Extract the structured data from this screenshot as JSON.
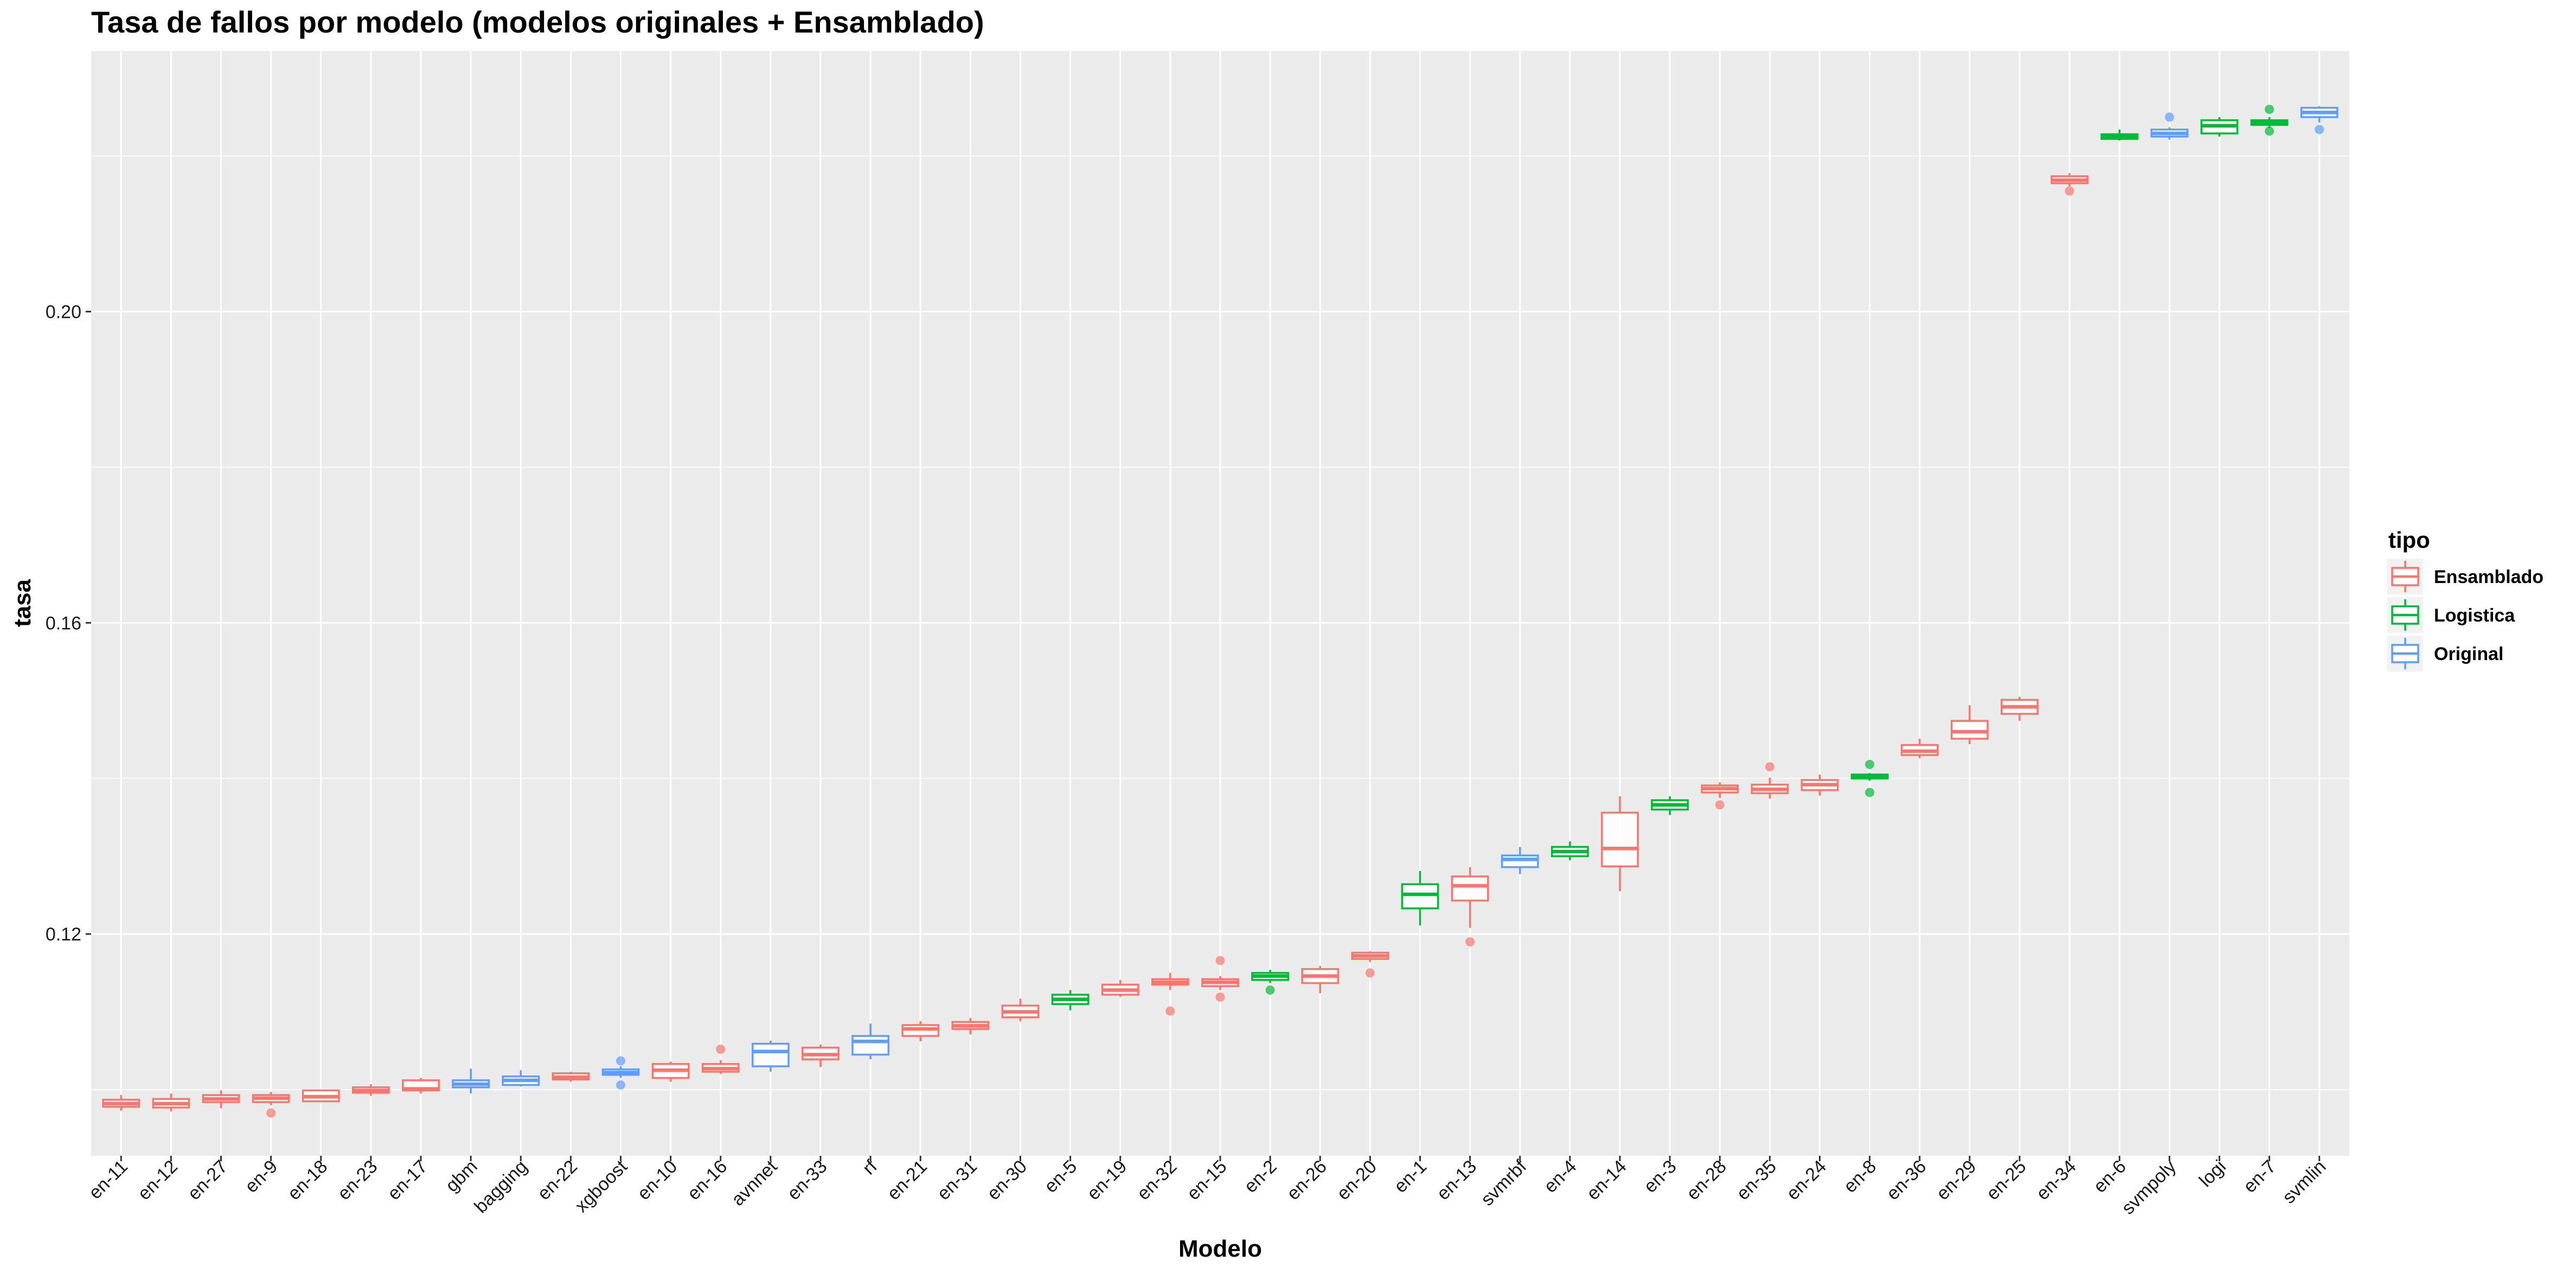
{
  "chart_data": {
    "type": "boxplot",
    "title": "Tasa de fallos por modelo (modelos originales + Ensamblado)",
    "xlabel": "Modelo",
    "ylabel": "tasa",
    "ylim": [
      0.0915,
      0.2335
    ],
    "y_ticks": [
      "0.12",
      "0.16",
      "0.20"
    ],
    "y_tick_values": [
      0.12,
      0.16,
      0.2
    ],
    "grid": true,
    "legend": {
      "title": "tipo",
      "position": "right",
      "entries": [
        {
          "name": "Ensamblado",
          "color": "#F8766D"
        },
        {
          "name": "Logistica",
          "color": "#00BA38"
        },
        {
          "name": "Original",
          "color": "#619CFF"
        }
      ]
    },
    "categories": [
      "en-11",
      "en-12",
      "en-27",
      "en-9",
      "en-18",
      "en-23",
      "en-17",
      "gbm",
      "bagging",
      "en-22",
      "xgboost",
      "en-10",
      "en-16",
      "avnnet",
      "en-33",
      "rf",
      "en-21",
      "en-31",
      "en-30",
      "en-5",
      "en-19",
      "en-32",
      "en-15",
      "en-2",
      "en-26",
      "en-20",
      "en-1",
      "en-13",
      "svmrbf",
      "en-4",
      "en-14",
      "en-3",
      "en-28",
      "en-35",
      "en-24",
      "en-8",
      "en-36",
      "en-29",
      "en-25",
      "en-34",
      "en-6",
      "svmpoly",
      "logi",
      "en-7",
      "svmlin"
    ],
    "boxes": [
      {
        "label": "en-11",
        "tipo": "Ensamblado",
        "min": 0.0973,
        "q1": 0.0978,
        "median": 0.0982,
        "q3": 0.0987,
        "max": 0.0993,
        "outliers": []
      },
      {
        "label": "en-12",
        "tipo": "Ensamblado",
        "min": 0.0972,
        "q1": 0.0977,
        "median": 0.0982,
        "q3": 0.0988,
        "max": 0.0995,
        "outliers": []
      },
      {
        "label": "en-27",
        "tipo": "Ensamblado",
        "min": 0.0976,
        "q1": 0.0984,
        "median": 0.0988,
        "q3": 0.0993,
        "max": 0.0999,
        "outliers": []
      },
      {
        "label": "en-9",
        "tipo": "Ensamblado",
        "min": 0.098,
        "q1": 0.0984,
        "median": 0.0989,
        "q3": 0.0993,
        "max": 0.0997,
        "outliers": [
          0.097
        ]
      },
      {
        "label": "en-18",
        "tipo": "Ensamblado",
        "min": 0.0985,
        "q1": 0.0985,
        "median": 0.0991,
        "q3": 0.0999,
        "max": 0.0999,
        "outliers": []
      },
      {
        "label": "en-23",
        "tipo": "Ensamblado",
        "min": 0.0992,
        "q1": 0.0996,
        "median": 0.0999,
        "q3": 0.1003,
        "max": 0.1007,
        "outliers": []
      },
      {
        "label": "en-17",
        "tipo": "Ensamblado",
        "min": 0.0995,
        "q1": 0.0999,
        "median": 0.1001,
        "q3": 0.1012,
        "max": 0.1015,
        "outliers": []
      },
      {
        "label": "gbm",
        "tipo": "Original",
        "min": 0.0995,
        "q1": 0.1003,
        "median": 0.1007,
        "q3": 0.1012,
        "max": 0.1027,
        "outliers": []
      },
      {
        "label": "bagging",
        "tipo": "Original",
        "min": 0.1004,
        "q1": 0.1006,
        "median": 0.1012,
        "q3": 0.1017,
        "max": 0.1025,
        "outliers": []
      },
      {
        "label": "en-22",
        "tipo": "Ensamblado",
        "min": 0.101,
        "q1": 0.1013,
        "median": 0.1016,
        "q3": 0.1021,
        "max": 0.1023,
        "outliers": []
      },
      {
        "label": "xgboost",
        "tipo": "Original",
        "min": 0.1015,
        "q1": 0.1019,
        "median": 0.1022,
        "q3": 0.1026,
        "max": 0.103,
        "outliers": [
          0.1037,
          0.1006
        ]
      },
      {
        "label": "en-10",
        "tipo": "Ensamblado",
        "min": 0.101,
        "q1": 0.1015,
        "median": 0.1025,
        "q3": 0.1033,
        "max": 0.1036,
        "outliers": []
      },
      {
        "label": "en-16",
        "tipo": "Ensamblado",
        "min": 0.102,
        "q1": 0.1023,
        "median": 0.1027,
        "q3": 0.1033,
        "max": 0.1038,
        "outliers": [
          0.1052
        ]
      },
      {
        "label": "avnnet",
        "tipo": "Original",
        "min": 0.1023,
        "q1": 0.103,
        "median": 0.1049,
        "q3": 0.1059,
        "max": 0.1063,
        "outliers": []
      },
      {
        "label": "en-33",
        "tipo": "Ensamblado",
        "min": 0.1029,
        "q1": 0.1039,
        "median": 0.1045,
        "q3": 0.1054,
        "max": 0.1058,
        "outliers": []
      },
      {
        "label": "rf",
        "tipo": "Original",
        "min": 0.1039,
        "q1": 0.1045,
        "median": 0.1062,
        "q3": 0.1069,
        "max": 0.1085,
        "outliers": []
      },
      {
        "label": "en-21",
        "tipo": "Ensamblado",
        "min": 0.1062,
        "q1": 0.1069,
        "median": 0.1078,
        "q3": 0.1083,
        "max": 0.1088,
        "outliers": []
      },
      {
        "label": "en-31",
        "tipo": "Ensamblado",
        "min": 0.1071,
        "q1": 0.1078,
        "median": 0.1082,
        "q3": 0.1087,
        "max": 0.1092,
        "outliers": []
      },
      {
        "label": "en-30",
        "tipo": "Ensamblado",
        "min": 0.1088,
        "q1": 0.1093,
        "median": 0.11,
        "q3": 0.1108,
        "max": 0.1117,
        "outliers": []
      },
      {
        "label": "en-5",
        "tipo": "Logistica",
        "min": 0.1102,
        "q1": 0.111,
        "median": 0.1116,
        "q3": 0.1122,
        "max": 0.1128,
        "outliers": []
      },
      {
        "label": "en-19",
        "tipo": "Ensamblado",
        "min": 0.1119,
        "q1": 0.1122,
        "median": 0.1128,
        "q3": 0.1135,
        "max": 0.1141,
        "outliers": []
      },
      {
        "label": "en-32",
        "tipo": "Ensamblado",
        "min": 0.1128,
        "q1": 0.1135,
        "median": 0.1138,
        "q3": 0.1142,
        "max": 0.115,
        "outliers": [
          0.1101
        ]
      },
      {
        "label": "en-15",
        "tipo": "Ensamblado",
        "min": 0.1128,
        "q1": 0.1133,
        "median": 0.1138,
        "q3": 0.1142,
        "max": 0.1146,
        "outliers": [
          0.1166,
          0.1119
        ]
      },
      {
        "label": "en-2",
        "tipo": "Logistica",
        "min": 0.1137,
        "q1": 0.1141,
        "median": 0.1146,
        "q3": 0.115,
        "max": 0.1154,
        "outliers": [
          0.1128
        ]
      },
      {
        "label": "en-26",
        "tipo": "Ensamblado",
        "min": 0.1124,
        "q1": 0.1137,
        "median": 0.1146,
        "q3": 0.1155,
        "max": 0.1159,
        "outliers": []
      },
      {
        "label": "en-20",
        "tipo": "Ensamblado",
        "min": 0.1164,
        "q1": 0.1168,
        "median": 0.1172,
        "q3": 0.1176,
        "max": 0.1178,
        "outliers": [
          0.115
        ]
      },
      {
        "label": "en-1",
        "tipo": "Logistica",
        "min": 0.1211,
        "q1": 0.1233,
        "median": 0.1251,
        "q3": 0.1264,
        "max": 0.1281,
        "outliers": []
      },
      {
        "label": "en-13",
        "tipo": "Ensamblado",
        "min": 0.1208,
        "q1": 0.1243,
        "median": 0.1262,
        "q3": 0.1274,
        "max": 0.1286,
        "outliers": [
          0.119
        ]
      },
      {
        "label": "svmrbf",
        "tipo": "Original",
        "min": 0.1277,
        "q1": 0.1286,
        "median": 0.1296,
        "q3": 0.1301,
        "max": 0.1312,
        "outliers": []
      },
      {
        "label": "en-4",
        "tipo": "Logistica",
        "min": 0.1295,
        "q1": 0.13,
        "median": 0.1306,
        "q3": 0.1312,
        "max": 0.1319,
        "outliers": []
      },
      {
        "label": "en-14",
        "tipo": "Ensamblado",
        "min": 0.1255,
        "q1": 0.1287,
        "median": 0.131,
        "q3": 0.1356,
        "max": 0.1377,
        "outliers": []
      },
      {
        "label": "en-3",
        "tipo": "Logistica",
        "min": 0.1353,
        "q1": 0.136,
        "median": 0.1366,
        "q3": 0.1372,
        "max": 0.1377,
        "outliers": []
      },
      {
        "label": "en-28",
        "tipo": "Ensamblado",
        "min": 0.1375,
        "q1": 0.1382,
        "median": 0.1387,
        "q3": 0.1391,
        "max": 0.1395,
        "outliers": [
          0.1366
        ]
      },
      {
        "label": "en-35",
        "tipo": "Ensamblado",
        "min": 0.1374,
        "q1": 0.1381,
        "median": 0.1386,
        "q3": 0.1392,
        "max": 0.1401,
        "outliers": [
          0.1415
        ]
      },
      {
        "label": "en-24",
        "tipo": "Ensamblado",
        "min": 0.1378,
        "q1": 0.1385,
        "median": 0.1392,
        "q3": 0.1398,
        "max": 0.1405,
        "outliers": []
      },
      {
        "label": "en-8",
        "tipo": "Logistica",
        "min": 0.1397,
        "q1": 0.14,
        "median": 0.1402,
        "q3": 0.1405,
        "max": 0.1407,
        "outliers": [
          0.1418,
          0.1382
        ]
      },
      {
        "label": "en-36",
        "tipo": "Ensamblado",
        "min": 0.1426,
        "q1": 0.143,
        "median": 0.1435,
        "q3": 0.1443,
        "max": 0.1451,
        "outliers": []
      },
      {
        "label": "en-29",
        "tipo": "Ensamblado",
        "min": 0.1444,
        "q1": 0.1451,
        "median": 0.146,
        "q3": 0.1474,
        "max": 0.1494,
        "outliers": []
      },
      {
        "label": "en-25",
        "tipo": "Ensamblado",
        "min": 0.1474,
        "q1": 0.1483,
        "median": 0.1492,
        "q3": 0.1501,
        "max": 0.1505,
        "outliers": []
      },
      {
        "label": "en-34",
        "tipo": "Ensamblado",
        "min": 0.2161,
        "q1": 0.2165,
        "median": 0.2169,
        "q3": 0.2174,
        "max": 0.2178,
        "outliers": [
          0.2155
        ]
      },
      {
        "label": "en-6",
        "tipo": "Logistica",
        "min": 0.222,
        "q1": 0.2222,
        "median": 0.2225,
        "q3": 0.2228,
        "max": 0.2234,
        "outliers": []
      },
      {
        "label": "svmpoly",
        "tipo": "Original",
        "min": 0.2221,
        "q1": 0.2225,
        "median": 0.2229,
        "q3": 0.2234,
        "max": 0.2237,
        "outliers": [
          0.225
        ]
      },
      {
        "label": "logi",
        "tipo": "Logistica",
        "min": 0.2225,
        "q1": 0.2229,
        "median": 0.2239,
        "q3": 0.2246,
        "max": 0.225,
        "outliers": []
      },
      {
        "label": "en-7",
        "tipo": "Logistica",
        "min": 0.2236,
        "q1": 0.224,
        "median": 0.2243,
        "q3": 0.2246,
        "max": 0.225,
        "outliers": [
          0.226,
          0.2232
        ]
      },
      {
        "label": "svmlin",
        "tipo": "Original",
        "min": 0.2243,
        "q1": 0.225,
        "median": 0.2256,
        "q3": 0.2262,
        "max": 0.2264,
        "outliers": [
          0.2234
        ]
      }
    ]
  }
}
